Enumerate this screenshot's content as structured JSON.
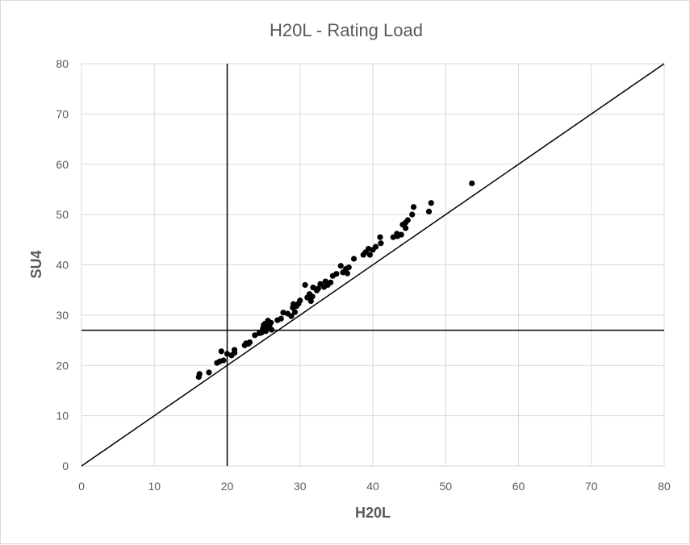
{
  "chart_data": {
    "type": "scatter",
    "title": "H20L - Rating Load",
    "xlabel": "H20L",
    "ylabel": "SU4",
    "xlim": [
      0,
      80
    ],
    "ylim": [
      0,
      80
    ],
    "xticks": [
      0,
      10,
      20,
      30,
      40,
      50,
      60,
      70,
      80
    ],
    "yticks": [
      0,
      10,
      20,
      30,
      40,
      50,
      60,
      70,
      80
    ],
    "grid": true,
    "marker_color": "#000000",
    "reference_lines": {
      "diagonal": {
        "from": [
          0,
          0
        ],
        "to": [
          80,
          80
        ]
      },
      "vertical_x": 20,
      "horizontal_y": 27
    },
    "series": [
      {
        "points": [
          [
            16.1,
            17.7
          ],
          [
            16.2,
            18.3
          ],
          [
            17.5,
            18.6
          ],
          [
            18.6,
            20.5
          ],
          [
            19.0,
            20.8
          ],
          [
            19.2,
            22.8
          ],
          [
            19.5,
            21.0
          ],
          [
            20.0,
            22.3
          ],
          [
            20.6,
            22.0
          ],
          [
            21.0,
            22.5
          ],
          [
            21.0,
            23.1
          ],
          [
            22.4,
            24.0
          ],
          [
            22.6,
            24.4
          ],
          [
            22.9,
            24.3
          ],
          [
            23.1,
            24.6
          ],
          [
            23.8,
            26.0
          ],
          [
            24.4,
            26.4
          ],
          [
            24.7,
            26.5
          ],
          [
            24.9,
            27.3
          ],
          [
            25.0,
            28.0
          ],
          [
            25.2,
            28.3
          ],
          [
            25.3,
            26.8
          ],
          [
            25.5,
            27.4
          ],
          [
            25.6,
            28.9
          ],
          [
            25.8,
            27.8
          ],
          [
            26.0,
            28.5
          ],
          [
            26.1,
            27.1
          ],
          [
            26.9,
            29.0
          ],
          [
            27.4,
            29.3
          ],
          [
            27.7,
            30.5
          ],
          [
            28.3,
            30.3
          ],
          [
            28.8,
            29.8
          ],
          [
            29.0,
            31.5
          ],
          [
            29.1,
            32.2
          ],
          [
            29.3,
            30.6
          ],
          [
            29.5,
            31.8
          ],
          [
            29.8,
            32.3
          ],
          [
            30.0,
            32.9
          ],
          [
            30.7,
            36.0
          ],
          [
            31.0,
            33.5
          ],
          [
            31.3,
            34.2
          ],
          [
            31.5,
            32.8
          ],
          [
            31.7,
            33.7
          ],
          [
            31.8,
            35.5
          ],
          [
            32.3,
            34.9
          ],
          [
            32.5,
            35.3
          ],
          [
            32.8,
            36.2
          ],
          [
            33.3,
            35.6
          ],
          [
            33.5,
            36.7
          ],
          [
            33.8,
            36.0
          ],
          [
            34.2,
            36.5
          ],
          [
            34.5,
            37.8
          ],
          [
            35.0,
            38.2
          ],
          [
            35.6,
            39.8
          ],
          [
            35.9,
            38.5
          ],
          [
            36.3,
            39.2
          ],
          [
            36.5,
            38.3
          ],
          [
            36.7,
            39.5
          ],
          [
            37.4,
            41.2
          ],
          [
            38.7,
            42.0
          ],
          [
            39.0,
            42.5
          ],
          [
            39.4,
            43.2
          ],
          [
            39.6,
            42.0
          ],
          [
            40.0,
            43.0
          ],
          [
            40.4,
            43.6
          ],
          [
            41.0,
            45.5
          ],
          [
            41.1,
            44.3
          ],
          [
            42.8,
            45.5
          ],
          [
            43.3,
            46.2
          ],
          [
            43.4,
            45.7
          ],
          [
            43.9,
            46.0
          ],
          [
            44.1,
            48.0
          ],
          [
            44.5,
            48.4
          ],
          [
            44.5,
            47.3
          ],
          [
            44.8,
            48.9
          ],
          [
            45.4,
            50.0
          ],
          [
            45.6,
            51.5
          ],
          [
            47.7,
            50.6
          ],
          [
            48.0,
            52.3
          ],
          [
            53.6,
            56.2
          ]
        ]
      }
    ]
  }
}
